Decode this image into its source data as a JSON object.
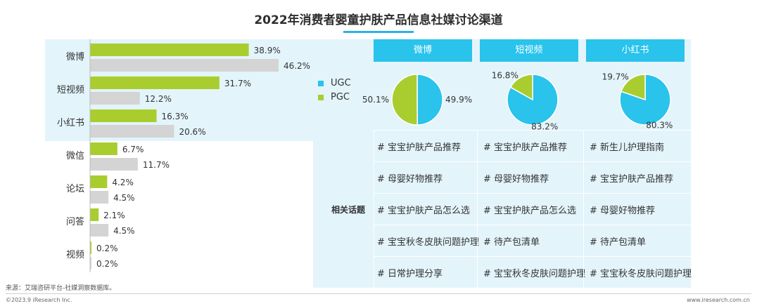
{
  "title": "2022年消费者婴童护肤产品信息社媒讨论渠道",
  "chart_data": [
    {
      "type": "bar",
      "orientation": "horizontal",
      "categories": [
        "微博",
        "短视频",
        "小红书",
        "微信",
        "论坛",
        "问答",
        "视频"
      ],
      "series": [
        {
          "values": [
            38.9,
            31.7,
            16.3,
            6.7,
            4.2,
            2.1,
            0.2
          ],
          "labels": [
            "38.9%",
            "31.7%",
            "16.3%",
            "6.7%",
            "4.2%",
            "2.1%",
            "0.2%"
          ],
          "color": "#a9cd2e"
        },
        {
          "values": [
            46.2,
            12.2,
            20.6,
            11.7,
            4.5,
            4.5,
            0.2
          ],
          "labels": [
            "46.2%",
            "12.2%",
            "20.6%",
            "11.7%",
            "4.5%",
            "4.5%",
            "0.2%"
          ],
          "color": "#d4d4d4"
        }
      ],
      "highlighted_categories": [
        "微博",
        "短视频",
        "小红书"
      ],
      "highlight_color": "#e3f4fb"
    },
    {
      "type": "pie",
      "title": "微博",
      "slices": [
        {
          "name": "UGC",
          "value": 49.9,
          "label": "49.9%",
          "color": "#29c3ec"
        },
        {
          "name": "PGC",
          "value": 50.1,
          "label": "50.1%",
          "color": "#a9cd2e"
        }
      ]
    },
    {
      "type": "pie",
      "title": "短视频",
      "slices": [
        {
          "name": "UGC",
          "value": 83.2,
          "label": "83.2%",
          "color": "#29c3ec"
        },
        {
          "name": "PGC",
          "value": 16.8,
          "label": "16.8%",
          "color": "#a9cd2e"
        }
      ]
    },
    {
      "type": "pie",
      "title": "小红书",
      "slices": [
        {
          "name": "UGC",
          "value": 80.3,
          "label": "80.3%",
          "color": "#29c3ec"
        },
        {
          "name": "PGC",
          "value": 19.7,
          "label": "19.7%",
          "color": "#a9cd2e"
        }
      ]
    }
  ],
  "panel": {
    "headers": [
      "微博",
      "短视频",
      "小红书"
    ],
    "legend": [
      {
        "name": "UGC",
        "color": "#29c3ec"
      },
      {
        "name": "PGC",
        "color": "#a9cd2e"
      }
    ],
    "topics_label": "相关话题",
    "topics": [
      [
        "# 宝宝护肤产品推荐",
        "# 宝宝护肤产品推荐",
        "# 新生儿护理指南"
      ],
      [
        "# 母婴好物推荐",
        "# 母婴好物推荐",
        "# 宝宝护肤产品推荐"
      ],
      [
        "# 宝宝护肤产品怎么选",
        "# 宝宝护肤产品怎么选",
        "# 母婴好物推荐"
      ],
      [
        "# 宝宝秋冬皮肤问题护理",
        "# 待产包清单",
        "# 待产包清单"
      ],
      [
        "# 日常护理分享",
        "# 宝宝秋冬皮肤问题护理",
        "# 宝宝秋冬皮肤问题护理"
      ]
    ]
  },
  "source": "来源：艾瑞咨研平台-社媒洞察数据库。",
  "copyright": "©2023.9 iResearch Inc.",
  "website": "www.iresearch.com.cn"
}
